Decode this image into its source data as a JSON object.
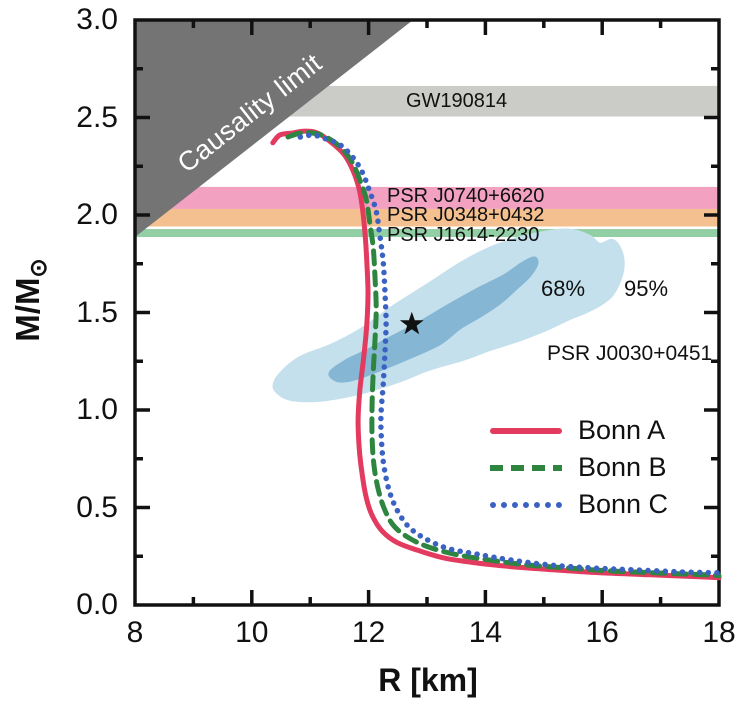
{
  "chart_data": {
    "type": "line",
    "xlabel": "R [km]",
    "ylabel_main": "M/M",
    "ylabel_sub": "⊙",
    "xlim": [
      8,
      18
    ],
    "ylim": [
      0.0,
      3.0
    ],
    "grid": false,
    "x_tick_values": [
      8,
      10,
      12,
      14,
      16,
      18
    ],
    "x_tick_labels": [
      "8",
      "10",
      "12",
      "14",
      "16",
      "18"
    ],
    "x_minor_ticks": [
      9,
      11,
      13,
      15,
      17
    ],
    "y_tick_values": [
      0.0,
      0.5,
      1.0,
      1.5,
      2.0,
      2.5,
      3.0
    ],
    "y_tick_labels": [
      "0.0",
      "0.5",
      "1.0",
      "1.5",
      "2.0",
      "2.5",
      "3.0"
    ],
    "y_minor_ticks": [
      0.25,
      0.75,
      1.25,
      1.75,
      2.25,
      2.75
    ],
    "bands": [
      {
        "name": "GW190814",
        "m_low": 2.505,
        "m_high": 2.662,
        "color": "#cbcbc7"
      },
      {
        "name": "PSR J0740+6620",
        "m_low": 2.031,
        "m_high": 2.144,
        "color": "#f2a2c0"
      },
      {
        "name": "PSR J0348+0432",
        "m_low": 1.941,
        "m_high": 2.031,
        "color": "#f5c08f"
      },
      {
        "name": "PSR J1614-2230",
        "m_low": 1.887,
        "m_high": 1.928,
        "color": "#93cfa5"
      }
    ],
    "causality_region": {
      "label": "Causality limit",
      "color": "#747474",
      "label_color": "#ffffff",
      "polygon": [
        [
          8.0,
          3.0
        ],
        [
          12.76,
          3.0
        ],
        [
          8.0,
          1.887
        ]
      ]
    },
    "contours": {
      "source": "PSR J0030+0451",
      "star_point": {
        "R": 12.74,
        "M": 1.44
      },
      "levels": [
        {
          "label": "95%",
          "color": "#c5e0ed",
          "polygon": [
            [
              10.38,
              1.12
            ],
            [
              10.5,
              1.19
            ],
            [
              10.83,
              1.27
            ],
            [
              11.34,
              1.33
            ],
            [
              11.85,
              1.41
            ],
            [
              12.42,
              1.53
            ],
            [
              13.05,
              1.65
            ],
            [
              13.62,
              1.76
            ],
            [
              14.16,
              1.84
            ],
            [
              14.68,
              1.89
            ],
            [
              15.21,
              1.92
            ],
            [
              15.5,
              1.92
            ],
            [
              15.79,
              1.89
            ],
            [
              15.96,
              1.85
            ],
            [
              16.17,
              1.87
            ],
            [
              16.3,
              1.83
            ],
            [
              16.36,
              1.76
            ],
            [
              16.32,
              1.68
            ],
            [
              16.17,
              1.59
            ],
            [
              15.96,
              1.54
            ],
            [
              15.7,
              1.5
            ],
            [
              15.45,
              1.47
            ],
            [
              15.02,
              1.41
            ],
            [
              14.59,
              1.36
            ],
            [
              14.08,
              1.31
            ],
            [
              13.62,
              1.26
            ],
            [
              13.05,
              1.21
            ],
            [
              12.54,
              1.15
            ],
            [
              12.02,
              1.1
            ],
            [
              11.6,
              1.07
            ],
            [
              11.17,
              1.05
            ],
            [
              10.77,
              1.05
            ],
            [
              10.53,
              1.07
            ]
          ]
        },
        {
          "label": "68%",
          "color": "#85b6d3",
          "polygon": [
            [
              11.34,
              1.19
            ],
            [
              11.6,
              1.25
            ],
            [
              11.94,
              1.3
            ],
            [
              12.37,
              1.37
            ],
            [
              12.88,
              1.45
            ],
            [
              13.39,
              1.54
            ],
            [
              13.87,
              1.62
            ],
            [
              14.33,
              1.69
            ],
            [
              14.62,
              1.75
            ],
            [
              14.83,
              1.78
            ],
            [
              14.88,
              1.75
            ],
            [
              14.76,
              1.69
            ],
            [
              14.55,
              1.63
            ],
            [
              14.25,
              1.55
            ],
            [
              13.9,
              1.48
            ],
            [
              13.56,
              1.42
            ],
            [
              13.22,
              1.34
            ],
            [
              12.71,
              1.27
            ],
            [
              12.23,
              1.21
            ],
            [
              11.77,
              1.16
            ],
            [
              11.48,
              1.15
            ]
          ]
        }
      ]
    },
    "series": [
      {
        "name": "Bonn A",
        "style": "solid",
        "color": "#e23b5f",
        "points": [
          [
            10.36,
            2.37
          ],
          [
            10.48,
            2.41
          ],
          [
            10.69,
            2.42
          ],
          [
            10.91,
            2.43
          ],
          [
            11.13,
            2.42
          ],
          [
            11.37,
            2.37
          ],
          [
            11.58,
            2.31
          ],
          [
            11.73,
            2.23
          ],
          [
            11.84,
            2.13
          ],
          [
            11.9,
            2.02
          ],
          [
            11.94,
            1.9
          ],
          [
            11.97,
            1.76
          ],
          [
            11.99,
            1.6
          ],
          [
            11.97,
            1.44
          ],
          [
            11.92,
            1.28
          ],
          [
            11.85,
            1.1
          ],
          [
            11.82,
            0.95
          ],
          [
            11.84,
            0.8
          ],
          [
            11.89,
            0.67
          ],
          [
            11.96,
            0.55
          ],
          [
            12.06,
            0.46
          ],
          [
            12.23,
            0.38
          ],
          [
            12.49,
            0.32
          ],
          [
            12.85,
            0.28
          ],
          [
            13.31,
            0.24
          ],
          [
            13.87,
            0.215
          ],
          [
            14.51,
            0.195
          ],
          [
            15.19,
            0.18
          ],
          [
            15.96,
            0.165
          ],
          [
            16.82,
            0.155
          ],
          [
            17.67,
            0.145
          ],
          [
            18.0,
            0.14
          ]
        ]
      },
      {
        "name": "Bonn B",
        "style": "dashed",
        "color": "#2e8540",
        "points": [
          [
            10.62,
            2.4
          ],
          [
            10.83,
            2.42
          ],
          [
            11.05,
            2.42
          ],
          [
            11.27,
            2.4
          ],
          [
            11.51,
            2.35
          ],
          [
            11.7,
            2.28
          ],
          [
            11.85,
            2.18
          ],
          [
            11.96,
            2.08
          ],
          [
            12.02,
            1.96
          ],
          [
            12.08,
            1.83
          ],
          [
            12.11,
            1.68
          ],
          [
            12.13,
            1.52
          ],
          [
            12.11,
            1.36
          ],
          [
            12.08,
            1.2
          ],
          [
            12.06,
            1.03
          ],
          [
            12.06,
            0.86
          ],
          [
            12.09,
            0.72
          ],
          [
            12.16,
            0.6
          ],
          [
            12.26,
            0.5
          ],
          [
            12.42,
            0.41
          ],
          [
            12.66,
            0.35
          ],
          [
            13.0,
            0.3
          ],
          [
            13.48,
            0.26
          ],
          [
            14.08,
            0.23
          ],
          [
            14.73,
            0.205
          ],
          [
            15.41,
            0.19
          ],
          [
            16.13,
            0.175
          ],
          [
            16.9,
            0.165
          ],
          [
            17.76,
            0.155
          ],
          [
            18.0,
            0.15
          ]
        ]
      },
      {
        "name": "Bonn C",
        "style": "dotted",
        "color": "#3b62c3",
        "points": [
          [
            10.83,
            2.4
          ],
          [
            11.05,
            2.41
          ],
          [
            11.27,
            2.39
          ],
          [
            11.51,
            2.36
          ],
          [
            11.72,
            2.3
          ],
          [
            11.89,
            2.22
          ],
          [
            12.02,
            2.12
          ],
          [
            12.13,
            2.02
          ],
          [
            12.19,
            1.9
          ],
          [
            12.25,
            1.76
          ],
          [
            12.28,
            1.6
          ],
          [
            12.3,
            1.45
          ],
          [
            12.28,
            1.3
          ],
          [
            12.25,
            1.13
          ],
          [
            12.21,
            0.96
          ],
          [
            12.23,
            0.8
          ],
          [
            12.28,
            0.68
          ],
          [
            12.37,
            0.57
          ],
          [
            12.5,
            0.48
          ],
          [
            12.69,
            0.4
          ],
          [
            12.97,
            0.34
          ],
          [
            13.36,
            0.29
          ],
          [
            13.87,
            0.26
          ],
          [
            14.45,
            0.23
          ],
          [
            15.1,
            0.205
          ],
          [
            15.82,
            0.19
          ],
          [
            16.56,
            0.18
          ],
          [
            17.33,
            0.17
          ],
          [
            18.0,
            0.165
          ]
        ]
      }
    ]
  },
  "annotations": {
    "causality": "Causality limit",
    "gw": "GW190814",
    "psr0740": "PSR J0740+6620",
    "psr0348": "PSR J0348+0432",
    "psr1614": "PSR J1614-2230",
    "pct68": "68%",
    "pct95": "95%",
    "psr0030": "PSR J0030+0451"
  }
}
